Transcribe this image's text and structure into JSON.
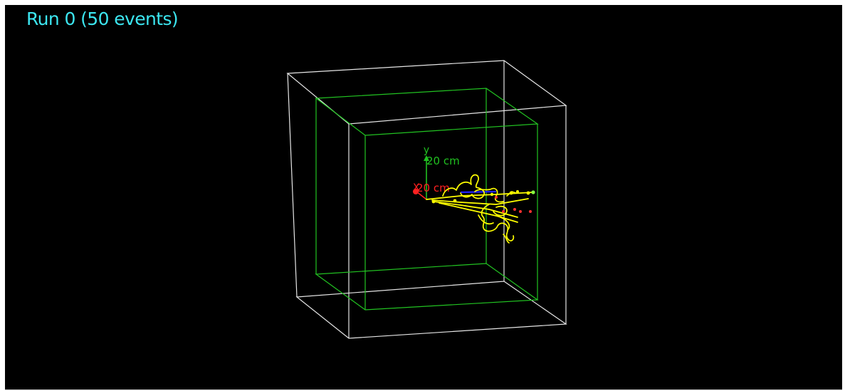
{
  "title": "Run 0 (50 events)",
  "axes": {
    "y_label": "y",
    "y_scale": "20 cm",
    "x_label": "X",
    "x_scale": "20 cm"
  },
  "colors": {
    "background": "#000000",
    "title": "#3ce6f0",
    "world_box": "#e6e6e6",
    "envelope_box": "#22c422",
    "tracks": "#ffff00",
    "y_axis": "#20c020",
    "x_axis": "#ff2020",
    "z_axis": "#2020ff"
  }
}
